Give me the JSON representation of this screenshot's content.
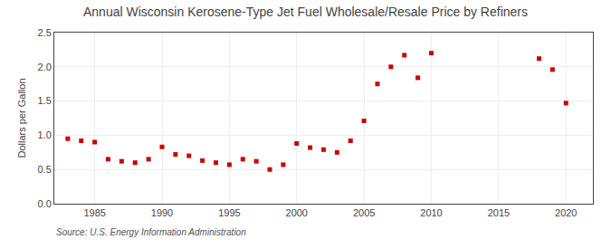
{
  "chart_data": {
    "type": "scatter",
    "title": "Annual Wisconsin Kerosene-Type Jet Fuel Wholesale/Resale Price by Refiners",
    "ylabel": "Dollars per Gallon",
    "annotations": [
      "Source: U.S. Energy Information Administration"
    ],
    "x": [
      1983,
      1984,
      1985,
      1986,
      1987,
      1988,
      1989,
      1990,
      1991,
      1992,
      1993,
      1994,
      1995,
      1996,
      1997,
      1998,
      1999,
      2000,
      2001,
      2002,
      2003,
      2004,
      2005,
      2006,
      2007,
      2008,
      2009,
      2010,
      2018,
      2019,
      2020
    ],
    "values": [
      0.95,
      0.92,
      0.9,
      0.65,
      0.62,
      0.6,
      0.65,
      0.83,
      0.72,
      0.7,
      0.63,
      0.6,
      0.57,
      0.65,
      0.62,
      0.5,
      0.57,
      0.88,
      0.82,
      0.79,
      0.75,
      0.92,
      1.21,
      1.75,
      2.0,
      2.17,
      1.84,
      2.2,
      2.12,
      1.96,
      1.47
    ],
    "color": "#cc0000",
    "marker": "square",
    "grid": true,
    "xlim": [
      1982,
      2022
    ],
    "ylim": [
      0.0,
      2.5
    ],
    "xticks": [
      1985,
      1990,
      1995,
      2000,
      2005,
      2010,
      2015,
      2020
    ],
    "yticks": [
      {
        "value": 0.0,
        "label": "0.0"
      },
      0.5,
      {
        "value": 1.0,
        "label": "1.0"
      },
      1.5,
      {
        "value": 2.0,
        "label": "2.0"
      },
      2.5
    ]
  }
}
